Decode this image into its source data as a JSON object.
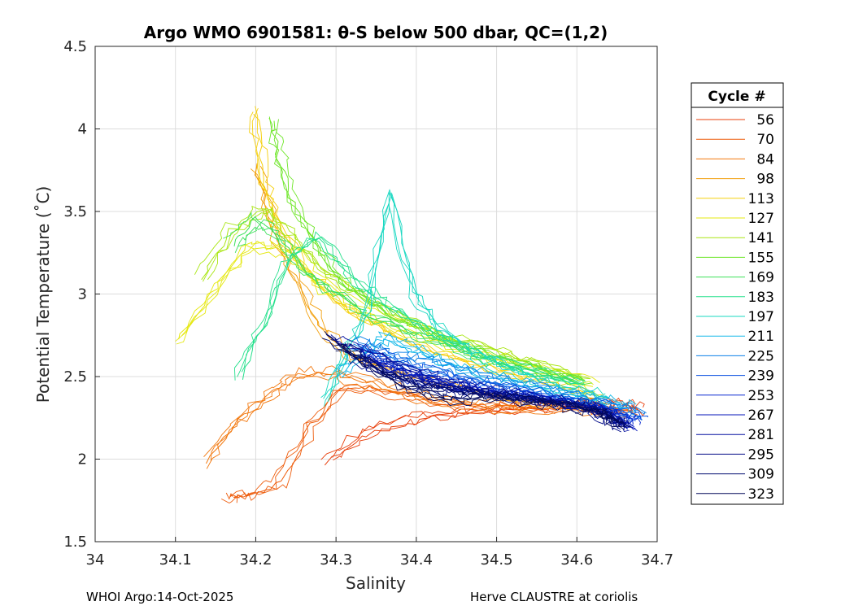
{
  "chart_data": {
    "type": "line",
    "title": "Argo WMO 6901581: θ-S below 500 dbar,  QC=(1,2)",
    "xlabel": "Salinity",
    "ylabel": "Potential Temperature (˚C)",
    "xlim": [
      34.0,
      34.7
    ],
    "ylim": [
      1.5,
      4.5
    ],
    "xticks": [
      "34",
      "34.1",
      "34.2",
      "34.3",
      "34.4",
      "34.5",
      "34.6",
      "34.7"
    ],
    "yticks": [
      "1.5",
      "2",
      "2.5",
      "3",
      "3.5",
      "4",
      "4.5"
    ],
    "grid": true,
    "legend_title": "Cycle #",
    "legend_position": "right, outside",
    "series": [
      {
        "name": "56",
        "color": "#e8400d",
        "x": [
          34.29,
          34.33,
          34.38,
          34.43,
          34.48,
          34.53,
          34.58,
          34.62,
          34.66,
          34.68
        ],
        "y": [
          1.98,
          2.13,
          2.21,
          2.26,
          2.28,
          2.3,
          2.31,
          2.33,
          2.31,
          2.28
        ]
      },
      {
        "name": "70",
        "color": "#ee5d0d",
        "x": [
          34.17,
          34.19,
          34.23,
          34.27,
          34.31,
          34.36,
          34.42,
          34.48,
          34.55,
          34.62,
          34.67
        ],
        "y": [
          1.77,
          1.79,
          1.86,
          2.2,
          2.45,
          2.42,
          2.36,
          2.32,
          2.31,
          2.33,
          2.28
        ]
      },
      {
        "name": "84",
        "color": "#f2780e",
        "x": [
          34.14,
          34.18,
          34.22,
          34.25,
          34.3,
          34.35,
          34.4,
          34.46,
          34.52,
          34.58,
          34.64
        ],
        "y": [
          1.98,
          2.25,
          2.4,
          2.5,
          2.52,
          2.45,
          2.38,
          2.33,
          2.31,
          2.32,
          2.3
        ]
      },
      {
        "name": "98",
        "color": "#f2a00f",
        "x": [
          34.2,
          34.22,
          34.25,
          34.28,
          34.32,
          34.37,
          34.42,
          34.47,
          34.52,
          34.58,
          34.64
        ],
        "y": [
          3.8,
          3.4,
          3.1,
          2.8,
          2.62,
          2.55,
          2.48,
          2.42,
          2.37,
          2.34,
          2.31
        ]
      },
      {
        "name": "113",
        "color": "#f5d00f",
        "x": [
          34.2,
          34.21,
          34.23,
          34.26,
          34.3,
          34.35,
          34.4,
          34.46,
          34.52,
          34.58,
          34.63
        ],
        "y": [
          4.1,
          3.7,
          3.4,
          3.15,
          2.95,
          2.8,
          2.68,
          2.58,
          2.5,
          2.43,
          2.37
        ]
      },
      {
        "name": "127",
        "color": "#e5e80f",
        "x": [
          34.1,
          34.15,
          34.19,
          34.24,
          34.28,
          34.33,
          34.38,
          34.44,
          34.5,
          34.56,
          34.62
        ],
        "y": [
          2.71,
          3.05,
          3.3,
          3.25,
          3.05,
          2.9,
          2.78,
          2.68,
          2.6,
          2.52,
          2.44
        ]
      },
      {
        "name": "141",
        "color": "#a9e612",
        "x": [
          34.13,
          34.17,
          34.21,
          34.25,
          34.29,
          34.34,
          34.39,
          34.44,
          34.5,
          34.55,
          34.61
        ],
        "y": [
          3.08,
          3.38,
          3.5,
          3.3,
          3.1,
          2.95,
          2.82,
          2.72,
          2.64,
          2.56,
          2.48
        ]
      },
      {
        "name": "155",
        "color": "#6ee628",
        "x": [
          34.22,
          34.23,
          34.25,
          34.28,
          34.31,
          34.35,
          34.4,
          34.45,
          34.5,
          34.56,
          34.61
        ],
        "y": [
          4.05,
          3.8,
          3.5,
          3.25,
          3.05,
          2.92,
          2.8,
          2.7,
          2.62,
          2.54,
          2.47
        ]
      },
      {
        "name": "169",
        "color": "#3be05a",
        "x": [
          34.17,
          34.2,
          34.23,
          34.26,
          34.3,
          34.34,
          34.39,
          34.44,
          34.49,
          34.55,
          34.6
        ],
        "y": [
          3.3,
          3.45,
          3.35,
          3.15,
          3.0,
          2.88,
          2.78,
          2.69,
          2.61,
          2.53,
          2.46
        ]
      },
      {
        "name": "183",
        "color": "#25e08c",
        "x": [
          34.18,
          34.21,
          34.24,
          34.28,
          34.32,
          34.36,
          34.4,
          34.44,
          34.49,
          34.55,
          34.61
        ],
        "y": [
          2.5,
          2.8,
          3.2,
          3.35,
          3.1,
          2.95,
          2.82,
          2.71,
          2.6,
          2.52,
          2.45
        ]
      },
      {
        "name": "197",
        "color": "#1ad8c2",
        "x": [
          34.29,
          34.31,
          34.34,
          34.37,
          34.4,
          34.43,
          34.47,
          34.51,
          34.55,
          34.6,
          34.64
        ],
        "y": [
          2.35,
          2.6,
          2.9,
          3.6,
          3.0,
          2.8,
          2.66,
          2.56,
          2.48,
          2.42,
          2.37
        ]
      },
      {
        "name": "211",
        "color": "#12b8e8",
        "x": [
          34.3,
          34.33,
          34.36,
          34.4,
          34.43,
          34.47,
          34.51,
          34.55,
          34.59,
          34.63,
          34.67
        ],
        "y": [
          2.5,
          2.62,
          2.72,
          2.66,
          2.58,
          2.52,
          2.47,
          2.43,
          2.39,
          2.35,
          2.31
        ]
      },
      {
        "name": "225",
        "color": "#0c80e8",
        "x": [
          34.32,
          34.35,
          34.38,
          34.42,
          34.45,
          34.49,
          34.53,
          34.57,
          34.61,
          34.65,
          34.68
        ],
        "y": [
          2.7,
          2.65,
          2.6,
          2.56,
          2.52,
          2.47,
          2.43,
          2.39,
          2.35,
          2.3,
          2.25
        ]
      },
      {
        "name": "239",
        "color": "#0a4fe0",
        "x": [
          34.33,
          34.36,
          34.39,
          34.43,
          34.46,
          34.5,
          34.54,
          34.58,
          34.62,
          34.65,
          34.68
        ],
        "y": [
          2.68,
          2.62,
          2.56,
          2.52,
          2.48,
          2.45,
          2.41,
          2.37,
          2.33,
          2.29,
          2.24
        ]
      },
      {
        "name": "253",
        "color": "#0828d0",
        "x": [
          34.34,
          34.37,
          34.4,
          34.44,
          34.47,
          34.51,
          34.55,
          34.59,
          34.63,
          34.66,
          34.67
        ],
        "y": [
          2.6,
          2.55,
          2.5,
          2.46,
          2.43,
          2.41,
          2.38,
          2.35,
          2.32,
          2.26,
          2.21
        ]
      },
      {
        "name": "267",
        "color": "#0616b8",
        "x": [
          34.33,
          34.36,
          34.4,
          34.43,
          34.47,
          34.51,
          34.55,
          34.59,
          34.63,
          34.65,
          34.67
        ],
        "y": [
          2.66,
          2.58,
          2.52,
          2.47,
          2.44,
          2.41,
          2.38,
          2.35,
          2.31,
          2.25,
          2.2
        ]
      },
      {
        "name": "281",
        "color": "#0510a0",
        "x": [
          34.3,
          34.34,
          34.38,
          34.42,
          34.46,
          34.5,
          34.54,
          34.58,
          34.62,
          34.65,
          34.66
        ],
        "y": [
          2.72,
          2.66,
          2.58,
          2.5,
          2.45,
          2.41,
          2.38,
          2.35,
          2.32,
          2.26,
          2.2
        ]
      },
      {
        "name": "295",
        "color": "#040d88",
        "x": [
          34.32,
          34.35,
          34.39,
          34.42,
          34.46,
          34.5,
          34.54,
          34.58,
          34.62,
          34.64,
          34.66
        ],
        "y": [
          2.62,
          2.55,
          2.48,
          2.44,
          2.41,
          2.39,
          2.37,
          2.34,
          2.31,
          2.25,
          2.19
        ]
      },
      {
        "name": "309",
        "color": "#030b70",
        "x": [
          34.29,
          34.33,
          34.37,
          34.41,
          34.45,
          34.49,
          34.53,
          34.57,
          34.61,
          34.64,
          34.66
        ],
        "y": [
          2.74,
          2.62,
          2.5,
          2.44,
          2.41,
          2.39,
          2.37,
          2.34,
          2.31,
          2.26,
          2.2
        ]
      },
      {
        "name": "323",
        "color": "#020858",
        "x": [
          34.3,
          34.34,
          34.38,
          34.42,
          34.46,
          34.5,
          34.54,
          34.58,
          34.62,
          34.64,
          34.66
        ],
        "y": [
          2.7,
          2.58,
          2.46,
          2.38,
          2.36,
          2.37,
          2.36,
          2.33,
          2.3,
          2.25,
          2.2
        ]
      }
    ]
  },
  "footer": {
    "left": "WHOI Argo:14-Oct-2025",
    "right": "Herve CLAUSTRE at coriolis"
  }
}
